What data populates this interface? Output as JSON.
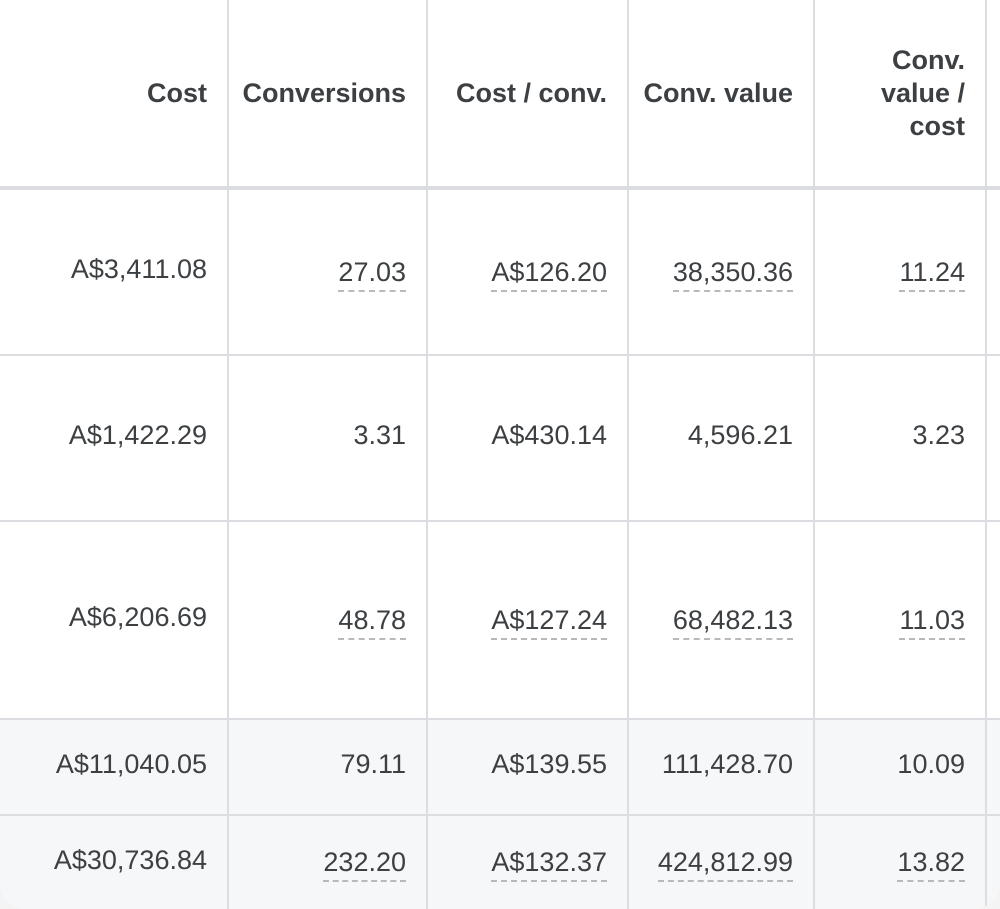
{
  "columns": [
    {
      "label": "Cost"
    },
    {
      "label": "Conversions"
    },
    {
      "label": "Cost / conv."
    },
    {
      "label": "Conv. value"
    },
    {
      "label": "Conv. value / cost"
    }
  ],
  "rows": [
    {
      "cost": "A$3,411.08",
      "conversions": "27.03",
      "cost_per_conv": "A$126.20",
      "conv_value": "38,350.36",
      "value_per_cost": "11.24"
    },
    {
      "cost": "A$1,422.29",
      "conversions": "3.31",
      "cost_per_conv": "A$430.14",
      "conv_value": "4,596.21",
      "value_per_cost": "3.23"
    },
    {
      "cost": "A$6,206.69",
      "conversions": "48.78",
      "cost_per_conv": "A$127.24",
      "conv_value": "68,482.13",
      "value_per_cost": "11.03"
    }
  ],
  "totals": [
    {
      "cost": "A$11,040.05",
      "conversions": "79.11",
      "cost_per_conv": "A$139.55",
      "conv_value": "111,428.70",
      "value_per_cost": "10.09"
    },
    {
      "cost": "A$30,736.84",
      "conversions": "232.20",
      "cost_per_conv": "A$132.37",
      "conv_value": "424,812.99",
      "value_per_cost": "13.82"
    }
  ],
  "colors": {
    "text": "#3c4043",
    "grid": "#dcdde0",
    "total_row_bg": "#f6f7f9"
  }
}
